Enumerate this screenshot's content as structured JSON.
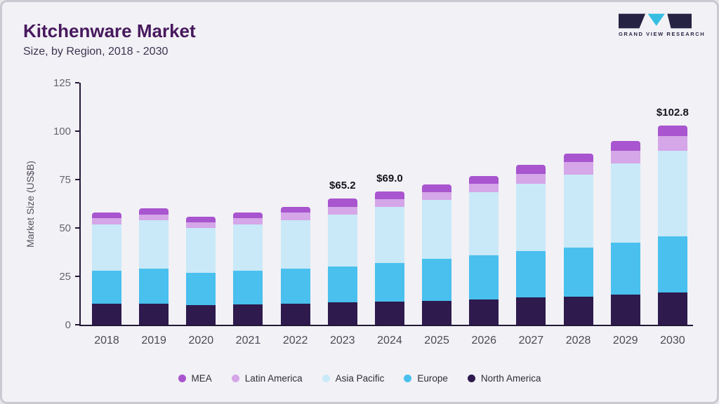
{
  "header": {
    "title": "Kitchenware Market",
    "subtitle": "Size, by Region, 2018 - 2030"
  },
  "logo": {
    "text": "GRAND VIEW RESEARCH"
  },
  "chart_data": {
    "type": "bar",
    "stacked": true,
    "title": "Kitchenware Market Size, by Region, 2018 - 2030",
    "ylabel": "Market Size (US$B)",
    "ylim": [
      0,
      125
    ],
    "yticks": [
      0,
      25,
      50,
      75,
      100,
      125
    ],
    "grid": false,
    "legend_position": "bottom",
    "categories": [
      "2018",
      "2019",
      "2020",
      "2021",
      "2022",
      "2023",
      "2024",
      "2025",
      "2026",
      "2027",
      "2028",
      "2029",
      "2030"
    ],
    "series": [
      {
        "name": "North America",
        "color": "#2e1a4d",
        "values": [
          11,
          11,
          10,
          10.5,
          11,
          11.5,
          12,
          12.5,
          13,
          14,
          14.5,
          15.5,
          16.5
        ]
      },
      {
        "name": "Europe",
        "color": "#49c0ee",
        "values": [
          17,
          18,
          17,
          17.5,
          18,
          18.5,
          20,
          21.5,
          23,
          24,
          25.5,
          27,
          29
        ]
      },
      {
        "name": "Asia Pacific",
        "color": "#c9e9f8",
        "values": [
          24,
          25,
          23,
          24,
          25,
          27,
          29,
          30.5,
          32.5,
          35,
          37.5,
          41,
          44.5
        ]
      },
      {
        "name": "Latin America",
        "color": "#d5a6e8",
        "values": [
          3,
          3,
          3,
          3,
          4,
          4,
          4,
          4,
          4.5,
          5,
          6.5,
          6.5,
          7.5
        ]
      },
      {
        "name": "MEA",
        "color": "#a855cf",
        "values": [
          3,
          3,
          3,
          3,
          3,
          4.2,
          4,
          4,
          4,
          4.5,
          4.5,
          5,
          5.3
        ]
      }
    ],
    "totals": [
      58,
      60,
      56,
      58,
      61,
      65.2,
      69.0,
      72.5,
      77,
      82.5,
      88.5,
      95,
      102.8
    ],
    "annotations": [
      {
        "category": "2023",
        "label": "$65.2"
      },
      {
        "category": "2024",
        "label": "$69.0"
      },
      {
        "category": "2030",
        "label": "$102.8"
      }
    ],
    "legend": [
      "MEA",
      "Latin America",
      "Asia Pacific",
      "Europe",
      "North America"
    ]
  }
}
